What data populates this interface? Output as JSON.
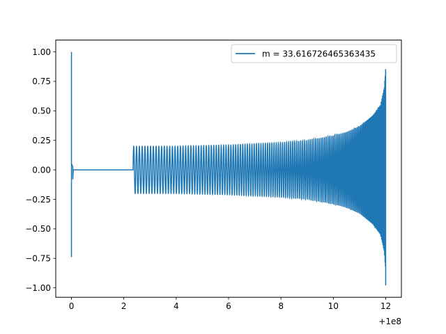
{
  "chart_data": {
    "type": "line",
    "title": "",
    "xlabel": "",
    "ylabel": "",
    "x_offset_label": "+1e8",
    "xlim": [
      -0.6,
      12.6
    ],
    "ylim": [
      -1.08,
      1.1
    ],
    "x_ticks": [
      0,
      2,
      4,
      6,
      8,
      10,
      12
    ],
    "x_tick_labels": [
      "0",
      "2",
      "4",
      "6",
      "8",
      "10",
      "12"
    ],
    "y_ticks": [
      1.0,
      0.75,
      0.5,
      0.25,
      0.0,
      -0.25,
      -0.5,
      -0.75,
      -1.0
    ],
    "y_tick_labels": [
      "1.00",
      "0.75",
      "0.50",
      "0.25",
      "0.00",
      "−0.25",
      "−0.50",
      "−0.75",
      "−1.00"
    ],
    "grid": false,
    "legend_position": "upper right",
    "series": [
      {
        "name": "m = 33.616726465363435",
        "color": "#1f77b4",
        "segments": [
          {
            "kind": "burst",
            "x_start": 0.0,
            "x_end": 0.05,
            "y_max": 1.0,
            "y_min": -0.74
          },
          {
            "kind": "flat",
            "x_start": 0.05,
            "x_end": 2.35,
            "y": 0.0
          },
          {
            "kind": "oscillation",
            "x_start": 2.35,
            "x_end": 12.0,
            "envelope": [
              [
                2.35,
                0.2
              ],
              [
                4.0,
                0.2
              ],
              [
                6.0,
                0.21
              ],
              [
                8.0,
                0.23
              ],
              [
                9.0,
                0.25
              ],
              [
                10.0,
                0.29
              ],
              [
                10.5,
                0.32
              ],
              [
                11.0,
                0.37
              ],
              [
                11.5,
                0.46
              ],
              [
                11.8,
                0.55
              ],
              [
                11.95,
                0.7
              ],
              [
                12.0,
                0.87
              ]
            ],
            "y_min_end": -0.98
          }
        ]
      }
    ]
  }
}
